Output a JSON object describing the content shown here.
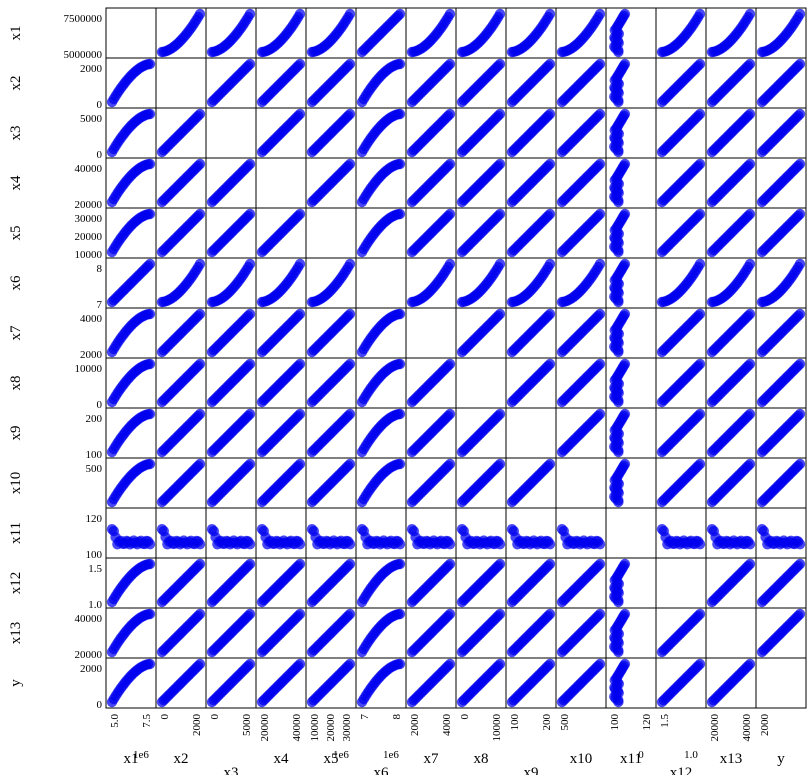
{
  "chart_data": {
    "type": "scatter",
    "title": "",
    "variables": [
      {
        "name": "x1",
        "shape": "convex",
        "yticks": [
          "7500000",
          "5000000"
        ],
        "xticks": [
          "5.0",
          "7.5"
        ],
        "offset": "1e6"
      },
      {
        "name": "x2",
        "shape": "concave",
        "yticks": [
          "2000",
          "0"
        ],
        "xticks": [
          "0",
          "2000"
        ]
      },
      {
        "name": "x3",
        "shape": "concave",
        "yticks": [
          "5000",
          "0"
        ],
        "xticks": [
          "0",
          "5000"
        ]
      },
      {
        "name": "x4",
        "shape": "concave",
        "yticks": [
          "40000",
          "20000"
        ],
        "xticks": [
          "20000",
          "40000"
        ]
      },
      {
        "name": "x5",
        "shape": "linear",
        "yticks": [
          "30000",
          "20000",
          "10000"
        ],
        "xticks": [
          "10000",
          "20000",
          "30000"
        ],
        "offset": "1e6"
      },
      {
        "name": "x6",
        "shape": "convex",
        "yticks": [
          "8",
          "7"
        ],
        "xticks": [
          "7",
          "8"
        ],
        "offset": "1e6"
      },
      {
        "name": "x7",
        "shape": "concave",
        "yticks": [
          "4000",
          "2000"
        ],
        "xticks": [
          "2000",
          "4000"
        ]
      },
      {
        "name": "x8",
        "shape": "concave",
        "yticks": [
          "10000",
          "0"
        ],
        "xticks": [
          "0",
          "10000"
        ]
      },
      {
        "name": "x9",
        "shape": "concave",
        "yticks": [
          "200",
          "100"
        ],
        "xticks": [
          "100",
          "200"
        ]
      },
      {
        "name": "x10",
        "shape": "concave",
        "yticks": [
          "500"
        ],
        "xticks": [
          "500"
        ]
      },
      {
        "name": "x11",
        "shape": "ushape",
        "yticks": [
          "120",
          "100"
        ],
        "xticks": [
          "100",
          "120"
        ],
        "offset": "0"
      },
      {
        "name": "x12",
        "shape": "concave",
        "yticks": [
          "1.5",
          "1.0"
        ],
        "xticks": [
          "1.5"
        ],
        "offset": "1.0"
      },
      {
        "name": "x13",
        "shape": "concave",
        "yticks": [
          "40000",
          "20000"
        ],
        "xticks": [
          "20000",
          "40000"
        ]
      },
      {
        "name": "y",
        "shape": "linear",
        "yticks": [
          "2000",
          "0"
        ],
        "xticks": [
          "2000"
        ]
      }
    ],
    "marker_color": "#0000ee",
    "grid": false
  }
}
